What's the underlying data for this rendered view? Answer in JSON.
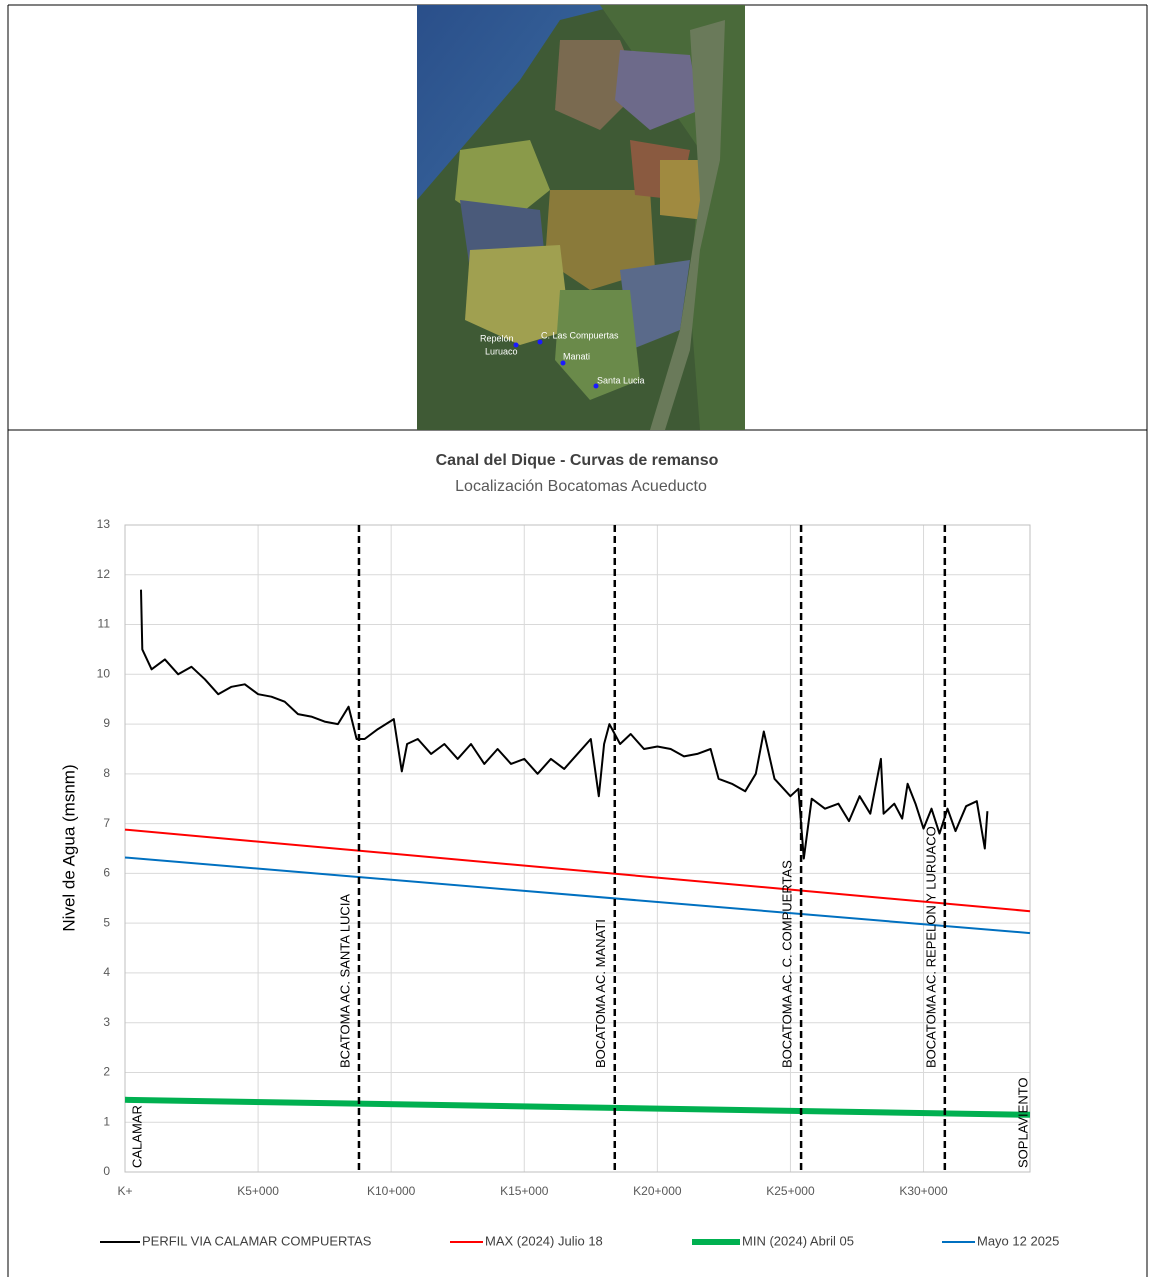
{
  "map": {
    "labels": [
      "Repelón",
      "Luruaco",
      "C. Las Compuertas",
      "Manati",
      "Santa Lucia"
    ]
  },
  "chart_data": {
    "type": "line",
    "title": "Canal del Dique - Curvas de remanso",
    "subtitle": "Localización Bocatomas Acueducto",
    "y_label": "Nivel de Agua (msnm)",
    "xlim": [
      0,
      34
    ],
    "ylim": [
      0,
      13
    ],
    "xticks": [
      {
        "value": 0,
        "label": "K+"
      },
      {
        "value": 5,
        "label": "K5+000"
      },
      {
        "value": 10,
        "label": "K10+000"
      },
      {
        "value": 15,
        "label": "K15+000"
      },
      {
        "value": 20,
        "label": "K20+000"
      },
      {
        "value": 25,
        "label": "K25+000"
      },
      {
        "value": 30,
        "label": "K30+000"
      }
    ],
    "yticks": [
      0,
      1,
      2,
      3,
      4,
      5,
      6,
      7,
      8,
      9,
      10,
      11,
      12,
      13
    ],
    "grid": true,
    "legend": "bottom",
    "series": [
      {
        "name": "PERFIL VIA CALAMAR COMPUERTAS",
        "color": "#000000",
        "line_width": 2,
        "x": [
          0.6,
          0.65,
          1.0,
          1.5,
          2.0,
          2.5,
          3.0,
          3.5,
          4.0,
          4.5,
          5.0,
          5.5,
          6.0,
          6.5,
          7.0,
          7.5,
          8.0,
          8.4,
          8.7,
          9.0,
          9.5,
          10.1,
          10.4,
          10.6,
          11.0,
          11.5,
          12.0,
          12.5,
          13.0,
          13.5,
          14.0,
          14.5,
          15.0,
          15.5,
          16.0,
          16.5,
          17.0,
          17.5,
          17.8,
          18.0,
          18.2,
          18.6,
          19.0,
          19.5,
          20.0,
          20.5,
          21.0,
          21.5,
          22.0,
          22.3,
          22.8,
          23.3,
          23.7,
          24.0,
          24.4,
          25.0,
          25.3,
          25.5,
          25.8,
          26.3,
          26.8,
          27.2,
          27.6,
          28.0,
          28.4,
          28.5,
          28.9,
          29.2,
          29.4,
          29.7,
          30.0,
          30.3,
          30.6,
          30.9,
          31.2,
          31.6,
          32.0,
          32.3,
          32.4
        ],
        "values": [
          11.7,
          10.5,
          10.1,
          10.3,
          10.0,
          10.15,
          9.9,
          9.6,
          9.75,
          9.8,
          9.6,
          9.55,
          9.45,
          9.2,
          9.15,
          9.05,
          9.0,
          9.35,
          8.7,
          8.7,
          8.9,
          9.1,
          8.05,
          8.6,
          8.7,
          8.4,
          8.6,
          8.3,
          8.6,
          8.2,
          8.5,
          8.2,
          8.3,
          8.0,
          8.3,
          8.1,
          8.4,
          8.7,
          7.55,
          8.6,
          9.0,
          8.6,
          8.8,
          8.5,
          8.55,
          8.5,
          8.35,
          8.4,
          8.5,
          7.9,
          7.8,
          7.65,
          8.0,
          8.85,
          7.9,
          7.55,
          7.7,
          6.3,
          7.5,
          7.3,
          7.4,
          7.05,
          7.55,
          7.2,
          8.3,
          7.2,
          7.4,
          7.1,
          7.8,
          7.4,
          6.9,
          7.3,
          6.8,
          7.3,
          6.85,
          7.35,
          7.45,
          6.5,
          7.25
        ]
      },
      {
        "name": "MAX (2024) Julio 18",
        "color": "#ff0000",
        "line_width": 2,
        "x": [
          0,
          34
        ],
        "values": [
          6.88,
          5.24
        ]
      },
      {
        "name": "MIN  (2024) Abril 05",
        "color": "#00b050",
        "line_width": 6,
        "x": [
          0,
          34
        ],
        "values": [
          1.45,
          1.15
        ]
      },
      {
        "name": "Mayo 12 2025",
        "color": "#0070c0",
        "line_width": 2,
        "x": [
          0,
          34
        ],
        "values": [
          6.32,
          4.8
        ]
      }
    ],
    "reference_lines": [
      {
        "x": 8.79,
        "label": "BCATOMA AC. SANTA LUCIA"
      },
      {
        "x": 18.4,
        "label": "BOCATOMA AC. MANATI"
      },
      {
        "x": 25.4,
        "label": "BOCATOMA AC. C. COMPUERTAS"
      },
      {
        "x": 30.8,
        "label": "BOCATOMA AC. REPELON Y LURUACO"
      }
    ],
    "end_labels": [
      {
        "x": 0,
        "label": "CALAMAR"
      },
      {
        "x": 34,
        "label": "SOPLAVIENTO"
      }
    ]
  }
}
